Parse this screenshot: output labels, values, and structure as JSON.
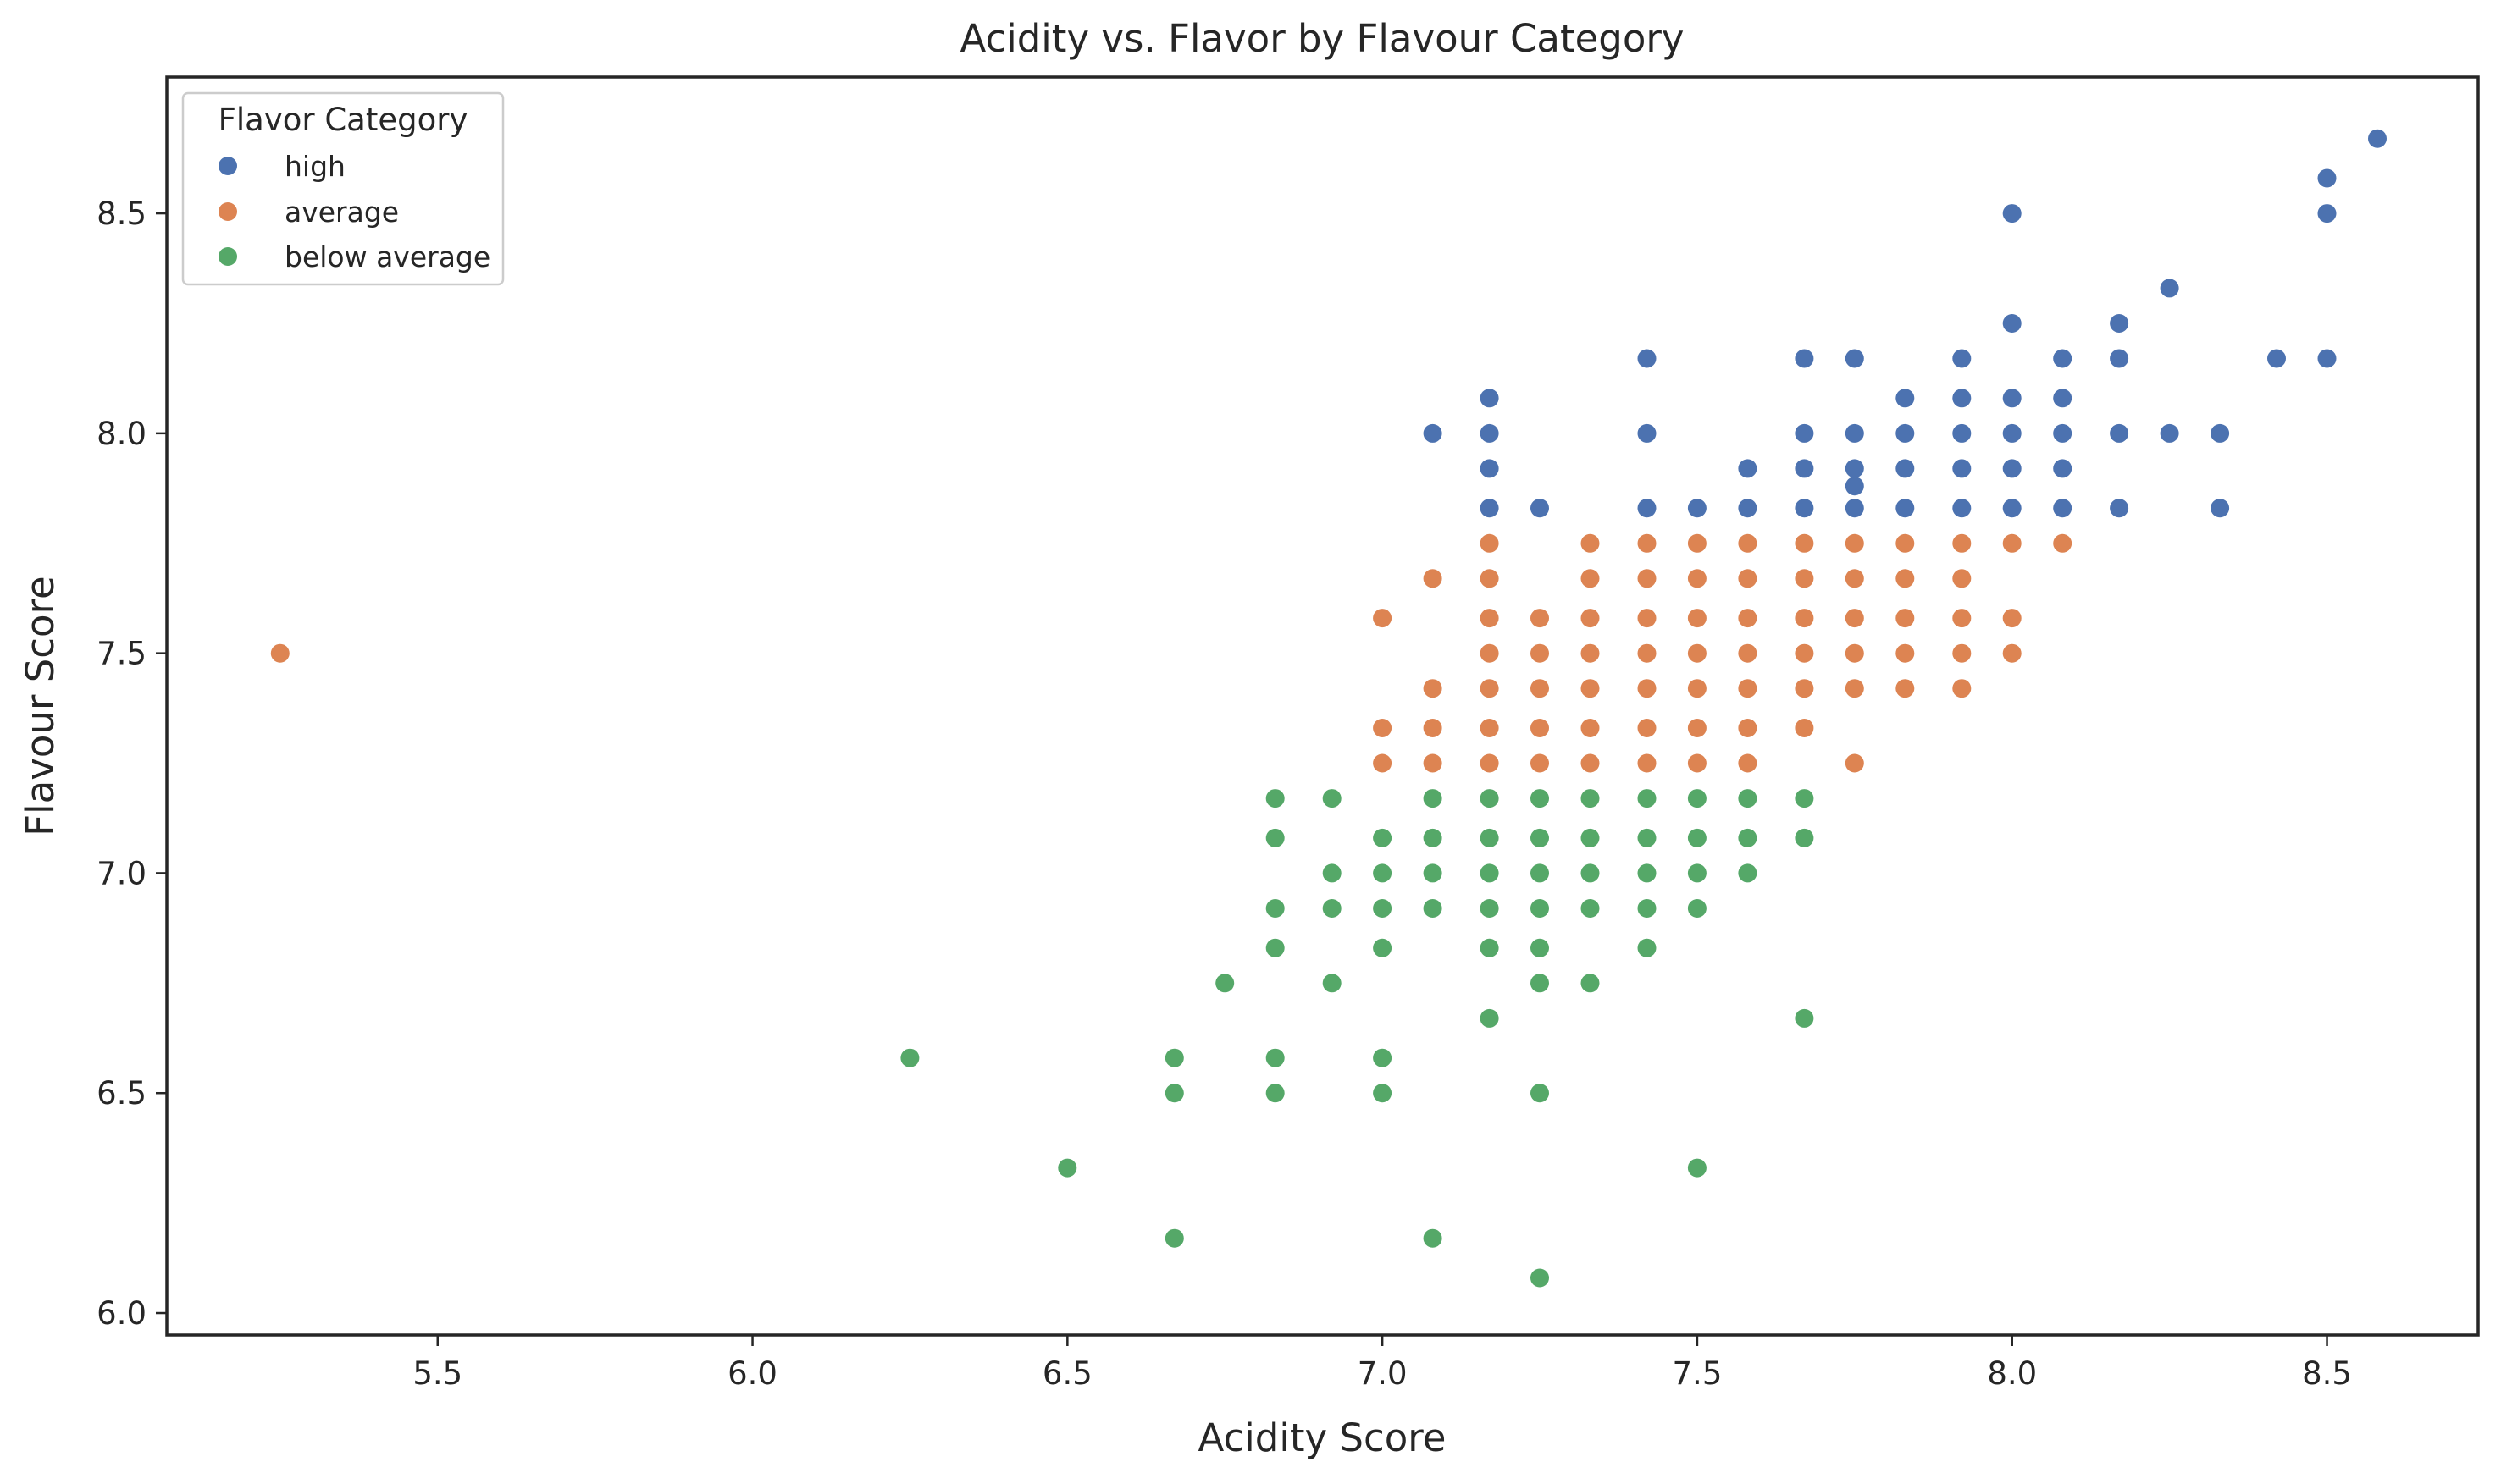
{
  "chart_data": {
    "type": "scatter",
    "title": "Acidity vs. Flavor by Flavour Category",
    "xlabel": "Acidity Score",
    "ylabel": "Flavour Score",
    "xlim": [
      5.07,
      8.74
    ],
    "ylim": [
      5.95,
      8.81
    ],
    "xticks": [
      "5.5",
      "6.0",
      "6.5",
      "7.0",
      "7.5",
      "8.0",
      "8.5"
    ],
    "yticks": [
      "6.0",
      "6.5",
      "7.0",
      "7.5",
      "8.0",
      "8.5"
    ],
    "grid": false,
    "legend": {
      "title": "Flavor Category",
      "position": "upper-left"
    },
    "series": [
      {
        "name": "high",
        "color": "#4c72b0",
        "points": [
          [
            7.08,
            8.0
          ],
          [
            7.17,
            8.08
          ],
          [
            7.17,
            8.0
          ],
          [
            7.17,
            7.92
          ],
          [
            7.17,
            7.83
          ],
          [
            7.25,
            7.83
          ],
          [
            7.42,
            8.17
          ],
          [
            7.42,
            8.0
          ],
          [
            7.42,
            7.83
          ],
          [
            7.5,
            7.83
          ],
          [
            7.58,
            7.92
          ],
          [
            7.58,
            7.83
          ],
          [
            7.67,
            8.17
          ],
          [
            7.67,
            8.0
          ],
          [
            7.67,
            7.92
          ],
          [
            7.67,
            7.83
          ],
          [
            7.75,
            8.17
          ],
          [
            7.75,
            8.0
          ],
          [
            7.75,
            7.92
          ],
          [
            7.75,
            7.88
          ],
          [
            7.75,
            7.83
          ],
          [
            7.83,
            8.08
          ],
          [
            7.83,
            8.0
          ],
          [
            7.83,
            7.92
          ],
          [
            7.83,
            7.83
          ],
          [
            7.92,
            8.17
          ],
          [
            7.92,
            8.08
          ],
          [
            7.92,
            8.0
          ],
          [
            7.92,
            7.92
          ],
          [
            7.92,
            7.83
          ],
          [
            8.0,
            8.5
          ],
          [
            8.0,
            8.25
          ],
          [
            8.0,
            8.08
          ],
          [
            8.0,
            8.0
          ],
          [
            8.0,
            7.92
          ],
          [
            8.0,
            7.83
          ],
          [
            8.08,
            8.17
          ],
          [
            8.08,
            8.08
          ],
          [
            8.08,
            8.0
          ],
          [
            8.08,
            7.92
          ],
          [
            8.08,
            7.83
          ],
          [
            8.17,
            8.25
          ],
          [
            8.17,
            8.17
          ],
          [
            8.17,
            8.0
          ],
          [
            8.17,
            7.83
          ],
          [
            8.25,
            8.33
          ],
          [
            8.25,
            8.0
          ],
          [
            8.33,
            8.0
          ],
          [
            8.33,
            7.83
          ],
          [
            8.42,
            8.17
          ],
          [
            8.5,
            8.58
          ],
          [
            8.5,
            8.5
          ],
          [
            8.5,
            8.17
          ],
          [
            8.58,
            8.67
          ]
        ]
      },
      {
        "name": "average",
        "color": "#dd8452",
        "points": [
          [
            5.25,
            7.5
          ],
          [
            7.0,
            7.58
          ],
          [
            7.0,
            7.33
          ],
          [
            7.0,
            7.25
          ],
          [
            7.08,
            7.67
          ],
          [
            7.08,
            7.42
          ],
          [
            7.08,
            7.33
          ],
          [
            7.08,
            7.25
          ],
          [
            7.17,
            7.75
          ],
          [
            7.17,
            7.67
          ],
          [
            7.17,
            7.58
          ],
          [
            7.17,
            7.5
          ],
          [
            7.17,
            7.42
          ],
          [
            7.17,
            7.33
          ],
          [
            7.17,
            7.25
          ],
          [
            7.25,
            7.58
          ],
          [
            7.25,
            7.5
          ],
          [
            7.25,
            7.42
          ],
          [
            7.25,
            7.33
          ],
          [
            7.25,
            7.25
          ],
          [
            7.33,
            7.75
          ],
          [
            7.33,
            7.67
          ],
          [
            7.33,
            7.58
          ],
          [
            7.33,
            7.5
          ],
          [
            7.33,
            7.42
          ],
          [
            7.33,
            7.33
          ],
          [
            7.33,
            7.25
          ],
          [
            7.42,
            7.75
          ],
          [
            7.42,
            7.67
          ],
          [
            7.42,
            7.58
          ],
          [
            7.42,
            7.5
          ],
          [
            7.42,
            7.42
          ],
          [
            7.42,
            7.33
          ],
          [
            7.42,
            7.25
          ],
          [
            7.5,
            7.75
          ],
          [
            7.5,
            7.67
          ],
          [
            7.5,
            7.58
          ],
          [
            7.5,
            7.5
          ],
          [
            7.5,
            7.42
          ],
          [
            7.5,
            7.33
          ],
          [
            7.5,
            7.25
          ],
          [
            7.58,
            7.75
          ],
          [
            7.58,
            7.67
          ],
          [
            7.58,
            7.58
          ],
          [
            7.58,
            7.5
          ],
          [
            7.58,
            7.42
          ],
          [
            7.58,
            7.33
          ],
          [
            7.58,
            7.25
          ],
          [
            7.67,
            7.75
          ],
          [
            7.67,
            7.67
          ],
          [
            7.67,
            7.58
          ],
          [
            7.67,
            7.5
          ],
          [
            7.67,
            7.42
          ],
          [
            7.67,
            7.33
          ],
          [
            7.75,
            7.75
          ],
          [
            7.75,
            7.67
          ],
          [
            7.75,
            7.58
          ],
          [
            7.75,
            7.5
          ],
          [
            7.75,
            7.42
          ],
          [
            7.75,
            7.25
          ],
          [
            7.83,
            7.75
          ],
          [
            7.83,
            7.67
          ],
          [
            7.83,
            7.58
          ],
          [
            7.83,
            7.5
          ],
          [
            7.83,
            7.42
          ],
          [
            7.92,
            7.75
          ],
          [
            7.92,
            7.67
          ],
          [
            7.92,
            7.58
          ],
          [
            7.92,
            7.5
          ],
          [
            7.92,
            7.42
          ],
          [
            8.0,
            7.75
          ],
          [
            8.0,
            7.58
          ],
          [
            8.0,
            7.5
          ],
          [
            8.08,
            7.75
          ]
        ]
      },
      {
        "name": "below average",
        "color": "#55a868",
        "points": [
          [
            6.25,
            6.58
          ],
          [
            6.5,
            6.33
          ],
          [
            6.67,
            6.58
          ],
          [
            6.67,
            6.5
          ],
          [
            6.67,
            6.17
          ],
          [
            6.75,
            6.75
          ],
          [
            6.83,
            7.17
          ],
          [
            6.83,
            7.08
          ],
          [
            6.83,
            6.92
          ],
          [
            6.83,
            6.83
          ],
          [
            6.83,
            6.58
          ],
          [
            6.83,
            6.5
          ],
          [
            6.92,
            7.17
          ],
          [
            6.92,
            7.0
          ],
          [
            6.92,
            6.92
          ],
          [
            6.92,
            6.75
          ],
          [
            7.0,
            7.08
          ],
          [
            7.0,
            7.0
          ],
          [
            7.0,
            6.92
          ],
          [
            7.0,
            6.83
          ],
          [
            7.0,
            6.58
          ],
          [
            7.0,
            6.5
          ],
          [
            7.08,
            7.17
          ],
          [
            7.08,
            7.08
          ],
          [
            7.08,
            7.0
          ],
          [
            7.08,
            6.92
          ],
          [
            7.08,
            6.17
          ],
          [
            7.17,
            7.17
          ],
          [
            7.17,
            7.08
          ],
          [
            7.17,
            7.0
          ],
          [
            7.17,
            6.92
          ],
          [
            7.17,
            6.83
          ],
          [
            7.17,
            6.67
          ],
          [
            7.25,
            7.17
          ],
          [
            7.25,
            7.08
          ],
          [
            7.25,
            7.0
          ],
          [
            7.25,
            6.92
          ],
          [
            7.25,
            6.83
          ],
          [
            7.25,
            6.75
          ],
          [
            7.25,
            6.5
          ],
          [
            7.25,
            6.08
          ],
          [
            7.33,
            7.17
          ],
          [
            7.33,
            7.08
          ],
          [
            7.33,
            7.0
          ],
          [
            7.33,
            6.92
          ],
          [
            7.33,
            6.75
          ],
          [
            7.42,
            7.17
          ],
          [
            7.42,
            7.08
          ],
          [
            7.42,
            7.0
          ],
          [
            7.42,
            6.92
          ],
          [
            7.42,
            6.83
          ],
          [
            7.5,
            7.17
          ],
          [
            7.5,
            7.08
          ],
          [
            7.5,
            7.0
          ],
          [
            7.5,
            6.92
          ],
          [
            7.5,
            6.33
          ],
          [
            7.58,
            7.17
          ],
          [
            7.58,
            7.08
          ],
          [
            7.58,
            7.0
          ],
          [
            7.67,
            7.17
          ],
          [
            7.67,
            7.08
          ],
          [
            7.67,
            6.67
          ]
        ]
      }
    ]
  }
}
